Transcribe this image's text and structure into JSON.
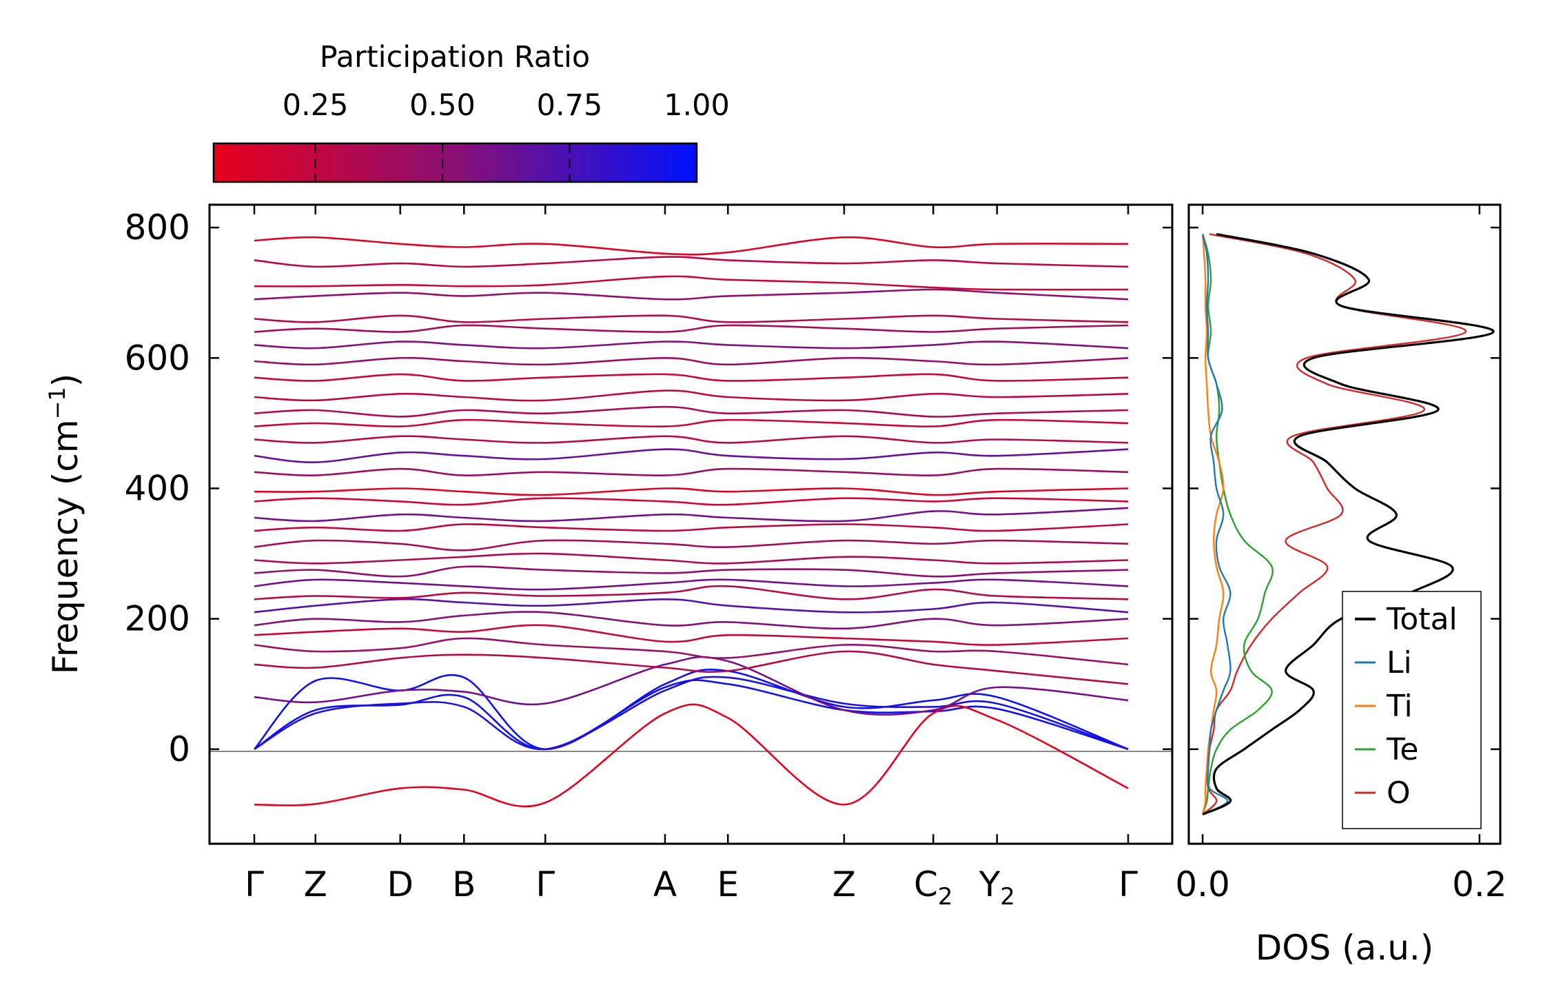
{
  "chart_data": [
    {
      "type": "line",
      "name": "phonon-band-structure",
      "ylabel": "Frequency (cm⁻¹)",
      "ylabel_base": "Frequency (cm",
      "ylabel_sup": "−1",
      "ylabel_end": ")",
      "ylim": [
        -145,
        835
      ],
      "yticks": [
        0,
        200,
        400,
        600,
        800
      ],
      "ytick_labels": [
        "0",
        "200",
        "400",
        "600",
        "800"
      ],
      "kpath": [
        "Γ",
        "Z",
        "D",
        "B",
        "Γ",
        "A",
        "E",
        "Z",
        "C",
        "Y",
        "Γ"
      ],
      "kpath_subscripts": [
        "",
        "",
        "",
        "",
        "",
        "",
        "",
        "",
        "2",
        "2",
        ""
      ],
      "kpath_positions": [
        0,
        0.07,
        0.167,
        0.24,
        0.333,
        0.47,
        0.542,
        0.675,
        0.777,
        0.85,
        1.0
      ],
      "zero_line": 0,
      "bands": [
        {
          "f": [
            0,
            60,
            68,
            80,
            0,
            95,
            100,
            60,
            58,
            62,
            0
          ],
          "pr": 0.95
        },
        {
          "f": [
            0,
            105,
            90,
            110,
            0,
            100,
            120,
            65,
            75,
            80,
            0
          ],
          "pr": 0.95
        },
        {
          "f": [
            0,
            55,
            70,
            65,
            0,
            90,
            110,
            70,
            65,
            70,
            0
          ],
          "pr": 0.9
        },
        {
          "f": [
            -85,
            -84,
            -60,
            -62,
            -82,
            55,
            48,
            -85,
            55,
            45,
            -60
          ],
          "pr": 0.05
        },
        {
          "f": [
            80,
            72,
            90,
            88,
            70,
            130,
            135,
            60,
            60,
            95,
            75
          ],
          "pr": 0.6
        },
        {
          "f": [
            130,
            125,
            140,
            145,
            140,
            125,
            120,
            150,
            130,
            120,
            100
          ],
          "pr": 0.3
        },
        {
          "f": [
            160,
            150,
            155,
            170,
            160,
            150,
            140,
            160,
            150,
            150,
            130
          ],
          "pr": 0.45
        },
        {
          "f": [
            175,
            180,
            185,
            180,
            190,
            165,
            175,
            170,
            165,
            160,
            170
          ],
          "pr": 0.2
        },
        {
          "f": [
            190,
            200,
            195,
            205,
            210,
            190,
            195,
            185,
            200,
            190,
            200
          ],
          "pr": 0.55
        },
        {
          "f": [
            210,
            220,
            230,
            225,
            220,
            230,
            220,
            210,
            215,
            225,
            210
          ],
          "pr": 0.7
        },
        {
          "f": [
            230,
            235,
            232,
            240,
            235,
            240,
            250,
            230,
            245,
            235,
            230
          ],
          "pr": 0.3
        },
        {
          "f": [
            250,
            260,
            255,
            250,
            245,
            255,
            260,
            250,
            255,
            260,
            250
          ],
          "pr": 0.6
        },
        {
          "f": [
            270,
            275,
            265,
            280,
            275,
            270,
            275,
            275,
            265,
            270,
            275
          ],
          "pr": 0.5
        },
        {
          "f": [
            290,
            285,
            290,
            295,
            300,
            290,
            285,
            295,
            290,
            285,
            290
          ],
          "pr": 0.35
        },
        {
          "f": [
            310,
            320,
            315,
            305,
            320,
            315,
            310,
            320,
            315,
            320,
            315
          ],
          "pr": 0.4
        },
        {
          "f": [
            335,
            340,
            335,
            345,
            340,
            335,
            340,
            345,
            340,
            335,
            345
          ],
          "pr": 0.25
        },
        {
          "f": [
            355,
            350,
            360,
            355,
            350,
            360,
            355,
            350,
            365,
            360,
            370
          ],
          "pr": 0.6
        },
        {
          "f": [
            380,
            385,
            380,
            375,
            385,
            380,
            375,
            385,
            380,
            385,
            380
          ],
          "pr": 0.15
        },
        {
          "f": [
            395,
            395,
            400,
            395,
            390,
            400,
            395,
            400,
            390,
            395,
            400
          ],
          "pr": 0.1
        },
        {
          "f": [
            425,
            420,
            430,
            420,
            425,
            420,
            430,
            425,
            420,
            430,
            425
          ],
          "pr": 0.45
        },
        {
          "f": [
            450,
            440,
            455,
            450,
            445,
            460,
            450,
            445,
            455,
            450,
            460
          ],
          "pr": 0.65
        },
        {
          "f": [
            475,
            470,
            480,
            475,
            470,
            480,
            470,
            480,
            470,
            475,
            470
          ],
          "pr": 0.3
        },
        {
          "f": [
            495,
            500,
            495,
            505,
            500,
            495,
            505,
            500,
            495,
            505,
            500
          ],
          "pr": 0.2
        },
        {
          "f": [
            515,
            520,
            510,
            520,
            515,
            525,
            515,
            520,
            510,
            515,
            520
          ],
          "pr": 0.35
        },
        {
          "f": [
            540,
            535,
            545,
            540,
            535,
            550,
            540,
            535,
            545,
            540,
            545
          ],
          "pr": 0.25
        },
        {
          "f": [
            570,
            565,
            575,
            565,
            570,
            575,
            565,
            570,
            575,
            565,
            570
          ],
          "pr": 0.2
        },
        {
          "f": [
            595,
            590,
            600,
            595,
            590,
            600,
            590,
            600,
            595,
            590,
            600
          ],
          "pr": 0.45
        },
        {
          "f": [
            620,
            615,
            625,
            620,
            615,
            625,
            620,
            615,
            620,
            625,
            615
          ],
          "pr": 0.55
        },
        {
          "f": [
            640,
            645,
            640,
            650,
            645,
            640,
            650,
            645,
            640,
            645,
            650
          ],
          "pr": 0.4
        },
        {
          "f": [
            660,
            655,
            665,
            655,
            660,
            665,
            655,
            660,
            665,
            660,
            655
          ],
          "pr": 0.3
        },
        {
          "f": [
            690,
            695,
            700,
            695,
            700,
            690,
            695,
            700,
            705,
            700,
            690
          ],
          "pr": 0.5
        },
        {
          "f": [
            710,
            710,
            712,
            710,
            712,
            725,
            720,
            715,
            708,
            705,
            705
          ],
          "pr": 0.2
        },
        {
          "f": [
            750,
            740,
            745,
            740,
            745,
            755,
            750,
            745,
            750,
            745,
            740
          ],
          "pr": 0.25
        },
        {
          "f": [
            780,
            785,
            775,
            770,
            775,
            760,
            762,
            785,
            770,
            775,
            775
          ],
          "pr": 0.1
        }
      ]
    },
    {
      "type": "line",
      "name": "density-of-states",
      "xlabel": "DOS (a.u.)",
      "xlim": [
        -0.01,
        0.215
      ],
      "xticks": [
        0.0,
        0.2
      ],
      "xtick_labels": [
        "0.0",
        "0.2"
      ],
      "ylim": [
        -145,
        835
      ],
      "series": [
        {
          "name": "Total",
          "color": "#000000",
          "y": [
            -100,
            -80,
            -60,
            -30,
            0,
            30,
            60,
            90,
            120,
            160,
            200,
            240,
            280,
            320,
            360,
            400,
            440,
            480,
            520,
            560,
            600,
            640,
            680,
            720,
            760,
            790
          ],
          "x": [
            0.0,
            0.02,
            0.01,
            0.01,
            0.03,
            0.05,
            0.07,
            0.08,
            0.06,
            0.08,
            0.1,
            0.15,
            0.18,
            0.12,
            0.14,
            0.11,
            0.09,
            0.07,
            0.17,
            0.1,
            0.08,
            0.21,
            0.1,
            0.12,
            0.08,
            0.01
          ]
        },
        {
          "name": "Li",
          "color": "#1f77b4",
          "y": [
            -100,
            -80,
            -60,
            -30,
            0,
            30,
            60,
            90,
            120,
            160,
            200,
            240,
            280,
            320,
            360,
            400,
            440,
            480,
            520,
            560,
            600,
            640,
            680,
            720,
            760,
            790
          ],
          "x": [
            0.0,
            0.018,
            0.005,
            0.004,
            0.005,
            0.006,
            0.01,
            0.015,
            0.02,
            0.018,
            0.015,
            0.02,
            0.012,
            0.01,
            0.015,
            0.01,
            0.008,
            0.006,
            0.014,
            0.01,
            0.004,
            0.004,
            0.003,
            0.004,
            0.003,
            0.0
          ]
        },
        {
          "name": "Ti",
          "color": "#ff7f0e",
          "y": [
            -100,
            -80,
            -60,
            -30,
            0,
            30,
            60,
            90,
            120,
            160,
            200,
            240,
            280,
            320,
            360,
            400,
            440,
            480,
            520,
            560,
            600,
            640,
            680,
            720,
            760,
            790
          ],
          "x": [
            0.0,
            0.002,
            0.002,
            0.003,
            0.004,
            0.006,
            0.008,
            0.01,
            0.006,
            0.01,
            0.012,
            0.015,
            0.01,
            0.008,
            0.01,
            0.015,
            0.012,
            0.006,
            0.004,
            0.003,
            0.002,
            0.003,
            0.002,
            0.002,
            0.001,
            0.0
          ]
        },
        {
          "name": "Te",
          "color": "#2ca02c",
          "y": [
            -100,
            -80,
            -60,
            -30,
            0,
            30,
            60,
            90,
            120,
            160,
            200,
            240,
            280,
            320,
            360,
            400,
            440,
            480,
            520,
            560,
            600,
            640,
            680,
            720,
            760,
            790
          ],
          "x": [
            0.0,
            0.003,
            0.004,
            0.006,
            0.01,
            0.02,
            0.04,
            0.05,
            0.035,
            0.03,
            0.04,
            0.045,
            0.05,
            0.03,
            0.02,
            0.015,
            0.012,
            0.01,
            0.012,
            0.01,
            0.004,
            0.006,
            0.004,
            0.006,
            0.004,
            0.0
          ]
        },
        {
          "name": "O",
          "color": "#d62728",
          "y": [
            -100,
            -80,
            -60,
            -30,
            0,
            30,
            60,
            90,
            120,
            160,
            200,
            240,
            280,
            320,
            360,
            400,
            440,
            480,
            520,
            560,
            600,
            640,
            680,
            720,
            760,
            790
          ],
          "x": [
            0.0,
            0.01,
            0.004,
            0.004,
            0.005,
            0.008,
            0.01,
            0.02,
            0.025,
            0.035,
            0.05,
            0.07,
            0.09,
            0.06,
            0.1,
            0.09,
            0.08,
            0.065,
            0.16,
            0.09,
            0.075,
            0.19,
            0.1,
            0.11,
            0.075,
            0.005
          ]
        }
      ]
    }
  ],
  "colorbar": {
    "title": "Participation Ratio",
    "ticks": [
      0.25,
      0.5,
      0.75,
      1.0
    ],
    "tick_labels": [
      "0.25",
      "0.50",
      "0.75",
      "1.00"
    ],
    "range": [
      0.05,
      1.0
    ],
    "color_low": "#e8001c",
    "color_mid": "#8a0f74",
    "color_high": "#0011ff"
  },
  "legend": {
    "placement": "lower-right",
    "entries": [
      "Total",
      "Li",
      "Ti",
      "Te",
      "O"
    ]
  }
}
